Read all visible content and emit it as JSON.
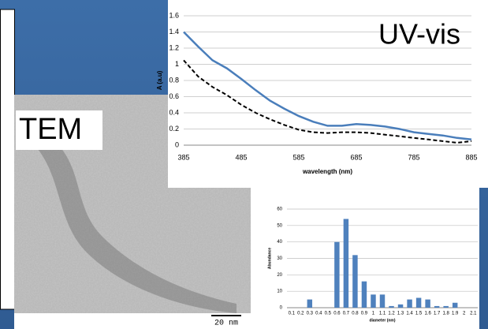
{
  "chart_data": [
    {
      "type": "line",
      "title": "UV-vis",
      "xlabel": "wavelength (nm)",
      "ylabel": "A (a.u)",
      "x": [
        385,
        410,
        435,
        460,
        485,
        510,
        535,
        560,
        585,
        610,
        635,
        660,
        685,
        710,
        735,
        760,
        785,
        810,
        835,
        860,
        885
      ],
      "series": [
        {
          "color": "#4a7ebb",
          "dash": false,
          "values": [
            1.4,
            1.22,
            1.05,
            0.95,
            0.82,
            0.68,
            0.55,
            0.45,
            0.36,
            0.29,
            0.24,
            0.24,
            0.26,
            0.25,
            0.23,
            0.2,
            0.16,
            0.14,
            0.12,
            0.09,
            0.07
          ]
        },
        {
          "color": "#000000",
          "dash": true,
          "values": [
            1.05,
            0.85,
            0.72,
            0.62,
            0.5,
            0.4,
            0.32,
            0.25,
            0.19,
            0.16,
            0.15,
            0.16,
            0.16,
            0.15,
            0.13,
            0.11,
            0.09,
            0.07,
            0.05,
            0.03,
            0.05
          ]
        }
      ],
      "xlim": [
        385,
        885
      ],
      "xticks": [
        385,
        485,
        585,
        685,
        785,
        885
      ],
      "ylim": [
        0,
        1.6
      ],
      "yticks": [
        0,
        {
          "value": 0.2,
          "label": "0.2"
        },
        {
          "value": 0.4,
          "label": "0.4"
        },
        {
          "value": 0.6,
          "label": "0.6"
        },
        {
          "value": 0.8,
          "label": "0.8"
        },
        1,
        {
          "value": 1.2,
          "label": "1.2"
        },
        {
          "value": 1.4,
          "label": "1.4"
        },
        {
          "value": 1.6,
          "label": "1.6"
        }
      ],
      "grid": true
    },
    {
      "type": "bar",
      "xlabel": "diameter (nm)",
      "ylabel": "Abundance",
      "color": "#4f81bd",
      "categories": [
        "0.1",
        "0.2",
        "0.3",
        "0.4",
        "0.5",
        "0.6",
        "0.7",
        "0.8",
        "0.9",
        "1",
        "1.1",
        "1.2",
        "1.3",
        "1.4",
        "1.5",
        "1.6",
        "1.7",
        "1.8",
        "1.9",
        "2",
        "2.1"
      ],
      "values": [
        0,
        0,
        5,
        0,
        0,
        40,
        54,
        32,
        16,
        8,
        8,
        1,
        2,
        5,
        6,
        5,
        1,
        1,
        3,
        0,
        0
      ],
      "ylim": [
        0,
        60
      ],
      "yticks": [
        0,
        10,
        20,
        30,
        40,
        50,
        60
      ],
      "grid": true
    }
  ],
  "tem": {
    "label": "TEM",
    "scale_bar": "20 nm"
  }
}
